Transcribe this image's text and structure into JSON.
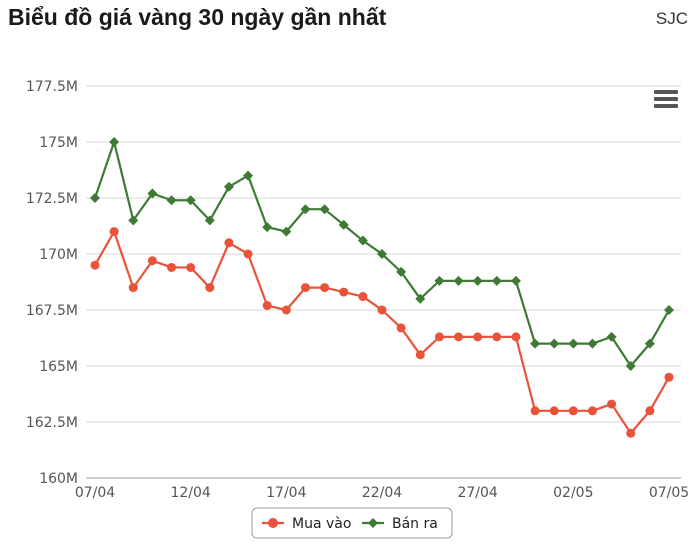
{
  "header": {
    "title": "Biểu đồ giá vàng 30 ngày gần nhất",
    "brand": "SJC"
  },
  "menu": {
    "icon": "hamburger-menu-icon"
  },
  "chart_data": {
    "type": "line",
    "title": "Biểu đồ giá vàng 30 ngày gần nhất",
    "xlabel": "",
    "ylabel": "",
    "ylim": [
      160,
      177.5
    ],
    "y_unit": "M",
    "y_ticks": [
      "177.5M",
      "175M",
      "172.5M",
      "170M",
      "167.5M",
      "165M",
      "162.5M",
      "160M"
    ],
    "x": [
      "07/04",
      "08/04",
      "09/04",
      "10/04",
      "11/04",
      "12/04",
      "13/04",
      "14/04",
      "15/04",
      "16/04",
      "17/04",
      "18/04",
      "19/04",
      "20/04",
      "21/04",
      "22/04",
      "23/04",
      "24/04",
      "25/04",
      "26/04",
      "27/04",
      "28/04",
      "29/04",
      "30/04",
      "01/05",
      "02/05",
      "03/05",
      "04/05",
      "05/05",
      "06/05",
      "07/05"
    ],
    "x_ticks": [
      "07/04",
      "12/04",
      "17/04",
      "22/04",
      "27/04",
      "02/05",
      "07/05"
    ],
    "grid": true,
    "legend_position": "bottom-center",
    "series": [
      {
        "name": "Mua vào",
        "color": "#e8533a",
        "marker": "circle",
        "values": [
          169.5,
          171.0,
          168.5,
          169.7,
          169.4,
          169.4,
          168.5,
          170.5,
          170.0,
          167.7,
          167.5,
          168.5,
          168.5,
          168.3,
          168.1,
          167.5,
          166.7,
          165.5,
          166.3,
          166.3,
          166.3,
          166.3,
          166.3,
          163.0,
          163.0,
          163.0,
          163.0,
          163.3,
          162.0,
          163.0,
          164.5
        ]
      },
      {
        "name": "Bán ra",
        "color": "#3f7a35",
        "marker": "diamond",
        "values": [
          172.5,
          175.0,
          171.5,
          172.7,
          172.4,
          172.4,
          171.5,
          173.0,
          173.5,
          171.2,
          171.0,
          172.0,
          172.0,
          171.3,
          170.6,
          170.0,
          169.2,
          168.0,
          168.8,
          168.8,
          168.8,
          168.8,
          168.8,
          166.0,
          166.0,
          166.0,
          166.0,
          166.3,
          165.0,
          166.0,
          167.5
        ]
      }
    ]
  }
}
